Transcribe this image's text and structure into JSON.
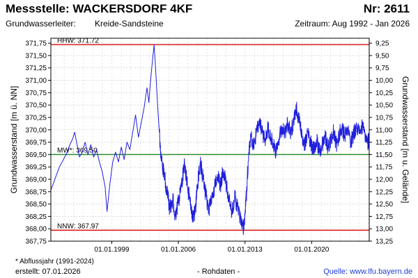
{
  "header": {
    "title": "Messstelle: WACKERSDORF 4KF",
    "nr": "Nr: 2611",
    "aquifer_label": "Grundwasserleiter:",
    "aquifer_value": "Kreide-Sandsteine",
    "period": "Zeitraum: Aug 1992 - Jan 2026"
  },
  "footer": {
    "footnote": "* Abflussjahr (1991-2024)",
    "created": "erstellt:  07.01.2026",
    "rawdata": "- Rohdaten -",
    "source": "Quelle: www.lfu.bayern.de"
  },
  "colors": {
    "series": "#1f1fdc",
    "extreme_lines": "#e02020",
    "mean_line": "#2e8b2e",
    "grid": "#c8c8c8",
    "source_link": "#1f3fd6"
  },
  "chart_data": {
    "type": "line",
    "ylabel": "Grundwasserstand [m ü. NN]",
    "ylabel_right": "Grundwasserstand [m u. Gelände]",
    "ylim": [
      367.75,
      371.85
    ],
    "xlim": [
      "1992-08",
      "2026-01"
    ],
    "x_ticks": [
      {
        "label": "01.01.1999",
        "year": 1999.0
      },
      {
        "label": "01.01.2006",
        "year": 2006.0
      },
      {
        "label": "01.01.2013",
        "year": 2013.0
      },
      {
        "label": "01.01.2020",
        "year": 2020.0
      }
    ],
    "y_ticks": [
      "367,75",
      "368,00",
      "368,25",
      "368,50",
      "368,75",
      "369,00",
      "369,25",
      "369,50",
      "369,75",
      "370,00",
      "370,25",
      "370,50",
      "370,75",
      "371,00",
      "371,25",
      "371,50",
      "371,75"
    ],
    "y_ticks_right": [
      {
        "label": "9,25",
        "depth": 9.25
      },
      {
        "label": "9,50",
        "depth": 9.5
      },
      {
        "label": "9,75",
        "depth": 9.75
      },
      {
        "label": "10,00",
        "depth": 10.0
      },
      {
        "label": "10,25",
        "depth": 10.25
      },
      {
        "label": "10,50",
        "depth": 10.5
      },
      {
        "label": "10,75",
        "depth": 10.75
      },
      {
        "label": "11,00",
        "depth": 11.0
      },
      {
        "label": "11,25",
        "depth": 11.25
      },
      {
        "label": "11,50",
        "depth": 11.5
      },
      {
        "label": "11,75",
        "depth": 11.75
      },
      {
        "label": "12,00",
        "depth": 12.0
      },
      {
        "label": "12,25",
        "depth": 12.25
      },
      {
        "label": "12,50",
        "depth": 12.5
      },
      {
        "label": "12,75",
        "depth": 12.75
      },
      {
        "label": "13,00",
        "depth": 13.0
      },
      {
        "label": "13,25",
        "depth": 13.25
      }
    ],
    "reference_lines": [
      {
        "label": "HHW: 371.72",
        "value": 371.72,
        "color": "#e02020"
      },
      {
        "label": "MW*: 369.50",
        "value": 369.5,
        "color": "#2e8b2e"
      },
      {
        "label": "NNW: 367.97",
        "value": 367.97,
        "color": "#e02020"
      }
    ],
    "series": [
      {
        "points": [
          [
            1992.6,
            368.78
          ],
          [
            1993.5,
            369.25
          ],
          [
            1994.2,
            369.5
          ],
          [
            1994.6,
            369.7
          ],
          [
            1994.9,
            369.82
          ],
          [
            1995.1,
            369.95
          ],
          [
            1995.3,
            369.75
          ],
          [
            1995.6,
            369.45
          ],
          [
            1995.9,
            369.55
          ],
          [
            1996.2,
            369.75
          ],
          [
            1996.5,
            369.5
          ],
          [
            1996.8,
            369.7
          ],
          [
            1997.1,
            369.45
          ],
          [
            1997.4,
            369.6
          ],
          [
            1997.7,
            369.35
          ],
          [
            1998.0,
            369.15
          ],
          [
            1998.3,
            368.85
          ],
          [
            1998.5,
            368.35
          ],
          [
            1998.8,
            368.9
          ],
          [
            1999.1,
            369.35
          ],
          [
            1999.4,
            369.55
          ],
          [
            1999.7,
            369.35
          ],
          [
            2000.0,
            369.65
          ],
          [
            2000.3,
            369.4
          ],
          [
            2000.6,
            369.75
          ],
          [
            2000.9,
            369.6
          ],
          [
            2001.2,
            369.95
          ],
          [
            2001.5,
            370.3
          ],
          [
            2001.8,
            369.85
          ],
          [
            2002.1,
            370.15
          ],
          [
            2002.4,
            370.45
          ],
          [
            2002.7,
            370.85
          ],
          [
            2002.9,
            370.55
          ],
          [
            2003.1,
            371.05
          ],
          [
            2003.3,
            371.45
          ],
          [
            2003.45,
            371.72
          ],
          [
            2003.6,
            371.25
          ],
          [
            2003.8,
            370.55
          ],
          [
            2004.0,
            369.95
          ],
          [
            2004.2,
            369.4
          ],
          [
            2004.5,
            369.1
          ],
          [
            2004.8,
            368.75
          ],
          [
            2005.1,
            368.4
          ],
          [
            2005.4,
            368.6
          ],
          [
            2005.7,
            368.25
          ],
          [
            2006.0,
            368.55
          ],
          [
            2006.3,
            368.85
          ],
          [
            2006.6,
            369.3
          ],
          [
            2006.9,
            368.95
          ],
          [
            2007.2,
            368.55
          ],
          [
            2007.5,
            368.2
          ],
          [
            2007.8,
            368.4
          ],
          [
            2008.0,
            368.9
          ],
          [
            2008.3,
            369.35
          ],
          [
            2008.6,
            369.0
          ],
          [
            2008.9,
            368.65
          ],
          [
            2009.2,
            368.4
          ],
          [
            2009.5,
            368.55
          ],
          [
            2009.8,
            368.85
          ],
          [
            2010.1,
            369.1
          ],
          [
            2010.4,
            368.85
          ],
          [
            2010.7,
            369.2
          ],
          [
            2011.0,
            368.9
          ],
          [
            2011.3,
            368.6
          ],
          [
            2011.6,
            368.3
          ],
          [
            2011.9,
            368.65
          ],
          [
            2012.2,
            368.45
          ],
          [
            2012.5,
            368.2
          ],
          [
            2012.8,
            367.97
          ],
          [
            2013.0,
            368.3
          ],
          [
            2013.2,
            368.85
          ],
          [
            2013.4,
            369.55
          ],
          [
            2013.6,
            369.9
          ],
          [
            2013.9,
            369.65
          ],
          [
            2014.2,
            369.95
          ],
          [
            2014.5,
            370.15
          ],
          [
            2014.8,
            369.95
          ],
          [
            2015.1,
            369.8
          ],
          [
            2015.4,
            370.05
          ],
          [
            2015.7,
            369.85
          ],
          [
            2016.0,
            369.65
          ],
          [
            2016.3,
            369.55
          ],
          [
            2016.6,
            369.85
          ],
          [
            2016.9,
            370.05
          ],
          [
            2017.2,
            369.95
          ],
          [
            2017.5,
            370.15
          ],
          [
            2017.8,
            369.9
          ],
          [
            2018.1,
            370.2
          ],
          [
            2018.4,
            370.45
          ],
          [
            2018.7,
            370.15
          ],
          [
            2019.0,
            369.85
          ],
          [
            2019.3,
            369.7
          ],
          [
            2019.6,
            369.95
          ],
          [
            2019.9,
            369.75
          ],
          [
            2020.2,
            369.6
          ],
          [
            2020.5,
            369.8
          ],
          [
            2020.8,
            369.55
          ],
          [
            2021.1,
            369.7
          ],
          [
            2021.4,
            369.9
          ],
          [
            2021.7,
            369.65
          ],
          [
            2022.0,
            369.8
          ],
          [
            2022.3,
            369.95
          ],
          [
            2022.6,
            369.7
          ],
          [
            2022.9,
            369.9
          ],
          [
            2023.2,
            370.05
          ],
          [
            2023.5,
            369.85
          ],
          [
            2023.8,
            370.0
          ],
          [
            2024.1,
            369.75
          ],
          [
            2024.4,
            369.9
          ],
          [
            2024.7,
            370.1
          ],
          [
            2025.0,
            369.95
          ],
          [
            2025.3,
            370.05
          ],
          [
            2025.6,
            369.9
          ],
          [
            2025.9,
            369.75
          ],
          [
            2026.0,
            369.8
          ]
        ]
      }
    ]
  }
}
